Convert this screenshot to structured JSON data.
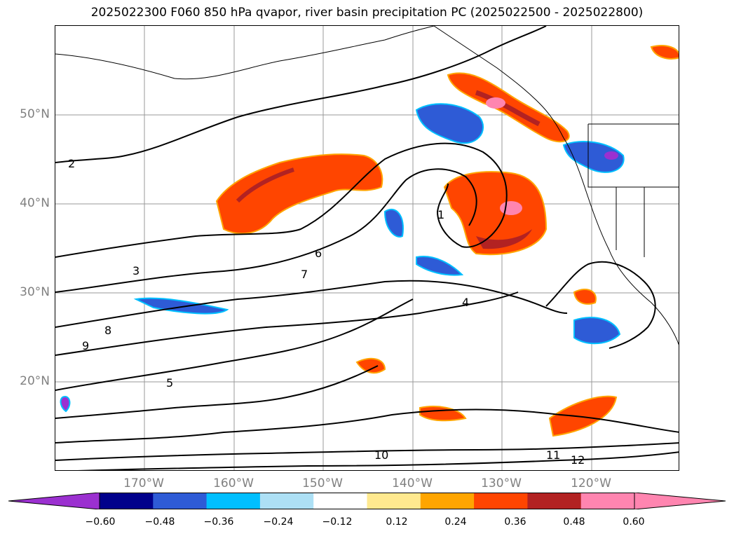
{
  "title": "2025022300 F060 850 hPa qvapor, river basin precipitation PC (2025022500 - 2025022800)",
  "map": {
    "lat_labels": [
      {
        "text": "50°N",
        "lat": 50
      },
      {
        "text": "40°N",
        "lat": 40
      },
      {
        "text": "30°N",
        "lat": 30
      },
      {
        "text": "20°N",
        "lat": 20
      }
    ],
    "lon_labels": [
      {
        "text": "170°W",
        "lon": -170
      },
      {
        "text": "160°W",
        "lon": -160
      },
      {
        "text": "150°W",
        "lon": -150
      },
      {
        "text": "140°W",
        "lon": -140
      },
      {
        "text": "130°W",
        "lon": -130
      },
      {
        "text": "120°W",
        "lon": -120
      }
    ],
    "contour_labels": [
      "1",
      "2",
      "3",
      "4",
      "5",
      "6",
      "7",
      "8",
      "9",
      "10",
      "11",
      "12"
    ]
  },
  "colorbar": {
    "ticks": [
      "−0.60",
      "−0.48",
      "−0.36",
      "−0.24",
      "−0.12",
      "0.12",
      "0.24",
      "0.36",
      "0.48",
      "0.60"
    ],
    "colors": [
      "#9b30d0",
      "#00008b",
      "#2e5bd6",
      "#00bfff",
      "#ade0f5",
      "#ffffff",
      "#ffe98f",
      "#ffa500",
      "#ff4500",
      "#b22222",
      "#ff85b0",
      "#ff85b0"
    ],
    "extend": "both"
  }
}
